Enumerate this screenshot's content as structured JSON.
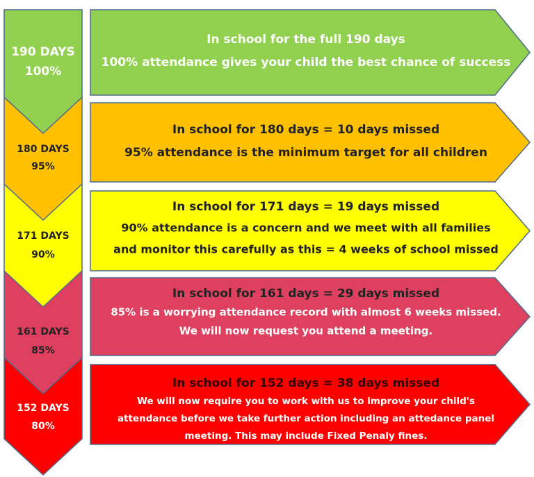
{
  "levels": [
    {
      "days": "190 DAYS",
      "percent": "100%",
      "lines": [
        "In school for the full 190 days",
        "100% attendance gives your child the best chance of success"
      ]
    },
    {
      "days": "180 DAYS",
      "percent": "95%",
      "lines": [
        "In school for 180 days = 10 days missed",
        "95% attendance is the minimum target for all children"
      ]
    },
    {
      "days": "171 DAYS",
      "percent": "90%",
      "lines": [
        "In school for 171 days = 19 days missed",
        "90% attendance is a concern and we meet with all families",
        "and monitor this carefully as this = 4 weeks of school missed"
      ]
    },
    {
      "days": "161 DAYS",
      "percent": "85%",
      "lines": [
        "In school for 161 days = 29 days missed",
        "85% is a worrying attendance record with almost 6 weeks missed.",
        "We will now request you attend a meeting."
      ]
    },
    {
      "days": "152 DAYS",
      "percent": "80%",
      "lines": [
        "In school for 152 days = 38 days missed",
        "We will  now require you to work with us to improve your child's",
        "attendance before we take further action including an attedance panel",
        "meeting. This may include Fixed Penaly fines."
      ]
    }
  ]
}
